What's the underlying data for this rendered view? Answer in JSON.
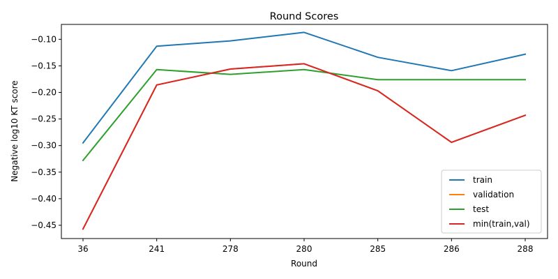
{
  "chart_data": {
    "type": "line",
    "title": "Round Scores",
    "xlabel": "Round",
    "ylabel": "Negative log10 KT score",
    "categories": [
      "36",
      "241",
      "278",
      "280",
      "285",
      "286",
      "288"
    ],
    "yticks": [
      "−0.45",
      "−0.40",
      "−0.35",
      "−0.30",
      "−0.25",
      "−0.20",
      "−0.15",
      "−0.10"
    ],
    "ytick_values": [
      -0.45,
      -0.4,
      -0.35,
      -0.3,
      -0.25,
      -0.2,
      -0.15,
      -0.1
    ],
    "ylim": [
      -0.475,
      -0.072
    ],
    "grid": false,
    "legend_position": "lower-right",
    "series": [
      {
        "name": "train",
        "color": "#1f77b4",
        "values": [
          -0.295,
          -0.113,
          -0.103,
          -0.087,
          -0.134,
          -0.159,
          -0.128
        ]
      },
      {
        "name": "validation",
        "color": "#ff7f0e",
        "values": [
          -0.457,
          -0.186,
          -0.156,
          -0.146,
          -0.197,
          -0.294,
          -0.243
        ]
      },
      {
        "name": "test",
        "color": "#2ca02c",
        "values": [
          -0.328,
          -0.157,
          -0.166,
          -0.157,
          -0.176,
          -0.176,
          -0.176
        ]
      },
      {
        "name": "min(train,val)",
        "color": "#d62728",
        "values": [
          -0.457,
          -0.186,
          -0.156,
          -0.146,
          -0.197,
          -0.294,
          -0.243
        ]
      }
    ]
  }
}
